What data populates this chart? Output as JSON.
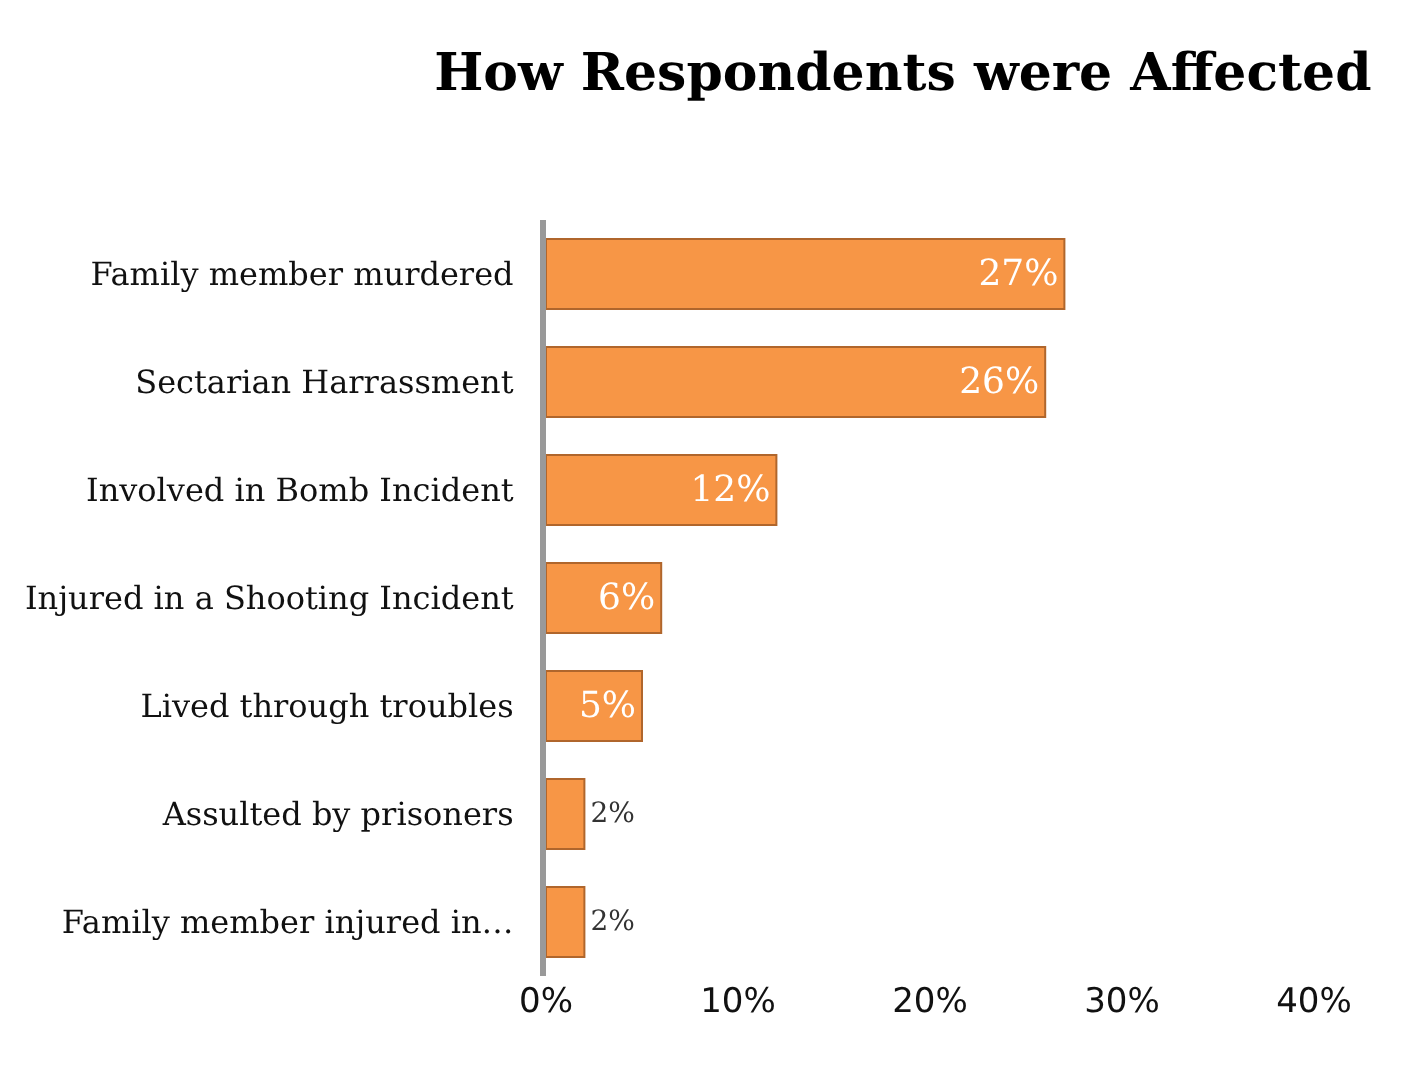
{
  "chart_data": {
    "type": "bar",
    "orientation": "horizontal",
    "title": "How Respondents were Affected",
    "categories": [
      "Family member murdered",
      "Sectarian Harrassment",
      "Involved in Bomb Incident",
      "Injured in a Shooting Incident",
      "Lived through troubles",
      "Assulted by prisoners",
      "Family member injured in…"
    ],
    "values": [
      27,
      26,
      12,
      6,
      5,
      2,
      2
    ],
    "value_labels": [
      "27%",
      "26%",
      "12%",
      "6%",
      "5%",
      "2%",
      "2%"
    ],
    "color": "#f79646",
    "xlim": [
      0,
      40
    ],
    "xticks": [
      {
        "value": 0,
        "label": "0%"
      },
      {
        "value": 10,
        "label": "10%"
      },
      {
        "value": 20,
        "label": "20%"
      },
      {
        "value": 30,
        "label": "30%"
      },
      {
        "value": 40,
        "label": "40%"
      }
    ],
    "data_labels": false
  }
}
